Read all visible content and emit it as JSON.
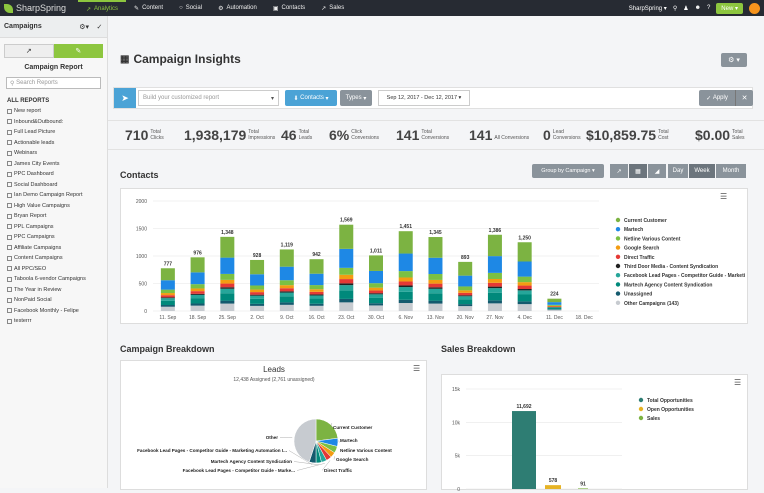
{
  "topnav": {
    "logo": "SharpSpring",
    "items": [
      {
        "label": "Analytics",
        "icon": "chart-icon",
        "active": true
      },
      {
        "label": "Content",
        "icon": "pencil-icon"
      },
      {
        "label": "Social",
        "icon": "chat-icon"
      },
      {
        "label": "Automation",
        "icon": "automation-icon"
      },
      {
        "label": "Contacts",
        "icon": "contacts-icon"
      },
      {
        "label": "Sales",
        "icon": "trend-icon"
      }
    ],
    "account": "SharpSpring",
    "new_label": "New"
  },
  "sidebar": {
    "title": "Campaigns",
    "report_label": "Campaign Report",
    "search_placeholder": "Search Reports",
    "all_reports": "ALL REPORTS",
    "items": [
      "New report",
      "Inbound&Outbound:",
      "Full Lead Picture",
      "Actionable leads",
      "Webinars",
      "James City Events",
      "PPC Dashboard",
      "Social Dashboard",
      "Ian Demo Campaign Report",
      "High Value Campaigns",
      "Bryan Report",
      "PPL Campaigns",
      "PPC Campaigns",
      "Affiliate Campaigns",
      "Content Campaigns",
      "All PPC/SEO",
      "Taboola 6-vendor Campaigns",
      "The Year in Review",
      "NonPaid Social",
      "Facebook Monthly - Felipe",
      "testerrr"
    ]
  },
  "page": {
    "title": "Campaign Insights"
  },
  "toolbar": {
    "input_placeholder": "Build your customized report",
    "contacts_label": "Contacts",
    "types_label": "Types",
    "date_range": "Sep 12, 2017 - Dec 12, 2017",
    "apply_label": "Apply"
  },
  "stats": [
    {
      "value": "710",
      "label1": "Total",
      "label2": "Clicks"
    },
    {
      "value": "1,938,179",
      "label1": "Total",
      "label2": "Impressions"
    },
    {
      "value": "46",
      "label1": "Total",
      "label2": "Leads"
    },
    {
      "value": "6%",
      "label1": "Click",
      "label2": "Conversions"
    },
    {
      "value": "141",
      "label1": "Total",
      "label2": "Conversions"
    },
    {
      "value": "141",
      "label1": "",
      "label2": "All Conversions"
    },
    {
      "value": "0",
      "label1": "Lead",
      "label2": "Conversions"
    },
    {
      "value": "$10,859.75",
      "label1": "Total",
      "label2": "Cost"
    },
    {
      "value": "$0.00",
      "label1": "Total",
      "label2": "Sales"
    }
  ],
  "contacts_section": {
    "title": "Contacts",
    "group_by": "Group by Campaign",
    "periods": [
      "Day",
      "Week",
      "Month"
    ],
    "active_period": "Week"
  },
  "breakdown": {
    "campaign_title": "Campaign Breakdown",
    "sales_title": "Sales Breakdown",
    "leads_title": "Leads",
    "leads_subtitle": "12,438 Assigned (2,761 unassigned)"
  },
  "colors": {
    "green": "#8dc63f",
    "blue": "#4ba3d6",
    "gray_btn": "#8a939b",
    "nav": "#272b33"
  },
  "chart_data": [
    {
      "type": "bar",
      "stacked": true,
      "categories": [
        "11. Sep",
        "18. Sep",
        "25. Sep",
        "2. Oct",
        "9. Oct",
        "16. Oct",
        "23. Oct",
        "30. Oct",
        "6. Nov",
        "13. Nov",
        "20. Nov",
        "27. Nov",
        "4. Dec",
        "11. Dec",
        "18. Dec"
      ],
      "totals": [
        777,
        976,
        1348,
        928,
        1119,
        942,
        1569,
        1011,
        1451,
        1345,
        893,
        1386,
        1250,
        224,
        null
      ],
      "total_labels": [
        "777",
        "976",
        "1,348",
        "928",
        "1,119",
        "942",
        "1,569",
        "1,011",
        "1,451",
        "1,345",
        "893",
        "1,386",
        "1,250",
        "224",
        ""
      ],
      "ylim": [
        0,
        2000
      ],
      "yticks": [
        "0",
        "500",
        "1000",
        "1500",
        "2000"
      ],
      "legend_position": "right",
      "series": [
        {
          "name": "Current Customer",
          "color": "#7cb342"
        },
        {
          "name": "Martech",
          "color": "#1e88e5"
        },
        {
          "name": "Netline Various Content",
          "color": "#7bc043"
        },
        {
          "name": "Google Search",
          "color": "#f39c12"
        },
        {
          "name": "Direct Traffic",
          "color": "#e53935"
        },
        {
          "name": "Third Door Media - Content Syndication",
          "color": "#212121"
        },
        {
          "name": "Facebook Lead Pages - Competitor Guide - Marketi",
          "color": "#26a69a"
        },
        {
          "name": "Martech Agency Content Syndication",
          "color": "#00897b"
        },
        {
          "name": "Unassigned",
          "color": "#145a6e"
        },
        {
          "name": "Other Campaigns (143)",
          "color": "#c7cbd0"
        }
      ]
    },
    {
      "type": "pie",
      "title": "Leads",
      "subtitle": "12,438 Assigned (2,761 unassigned)",
      "slices": [
        {
          "name": "Current Customer",
          "value": 23,
          "color": "#7cb342"
        },
        {
          "name": "Martech",
          "value": 6,
          "color": "#1e88e5"
        },
        {
          "name": "Netline Various Content",
          "value": 5,
          "color": "#7bc043"
        },
        {
          "name": "Google Search",
          "value": 4,
          "color": "#f39c12"
        },
        {
          "name": "Direct Traffic",
          "value": 4,
          "color": "#e53935"
        },
        {
          "name": "Facebook Lead Pages - Competitor Guide - Marke...",
          "value": 4,
          "color": "#26a69a"
        },
        {
          "name": "Martech Agency Content Syndication",
          "value": 4,
          "color": "#00897b"
        },
        {
          "name": "Facebook Lead Pages - Competitor Guide - Marketing Automation I...",
          "value": 5,
          "color": "#145a6e"
        },
        {
          "name": "Other",
          "value": 45,
          "color": "#c7cbd0"
        }
      ]
    },
    {
      "type": "bar",
      "categories": [
        "Total Opportunities",
        "Open Opportunities",
        "Sales"
      ],
      "values": [
        11692,
        578,
        91
      ],
      "value_labels": [
        "11,692",
        "578",
        "91"
      ],
      "ylim": [
        0,
        15000
      ],
      "yticks": [
        "0",
        "5k",
        "10k",
        "15k"
      ],
      "legend_position": "right",
      "series": [
        {
          "name": "Total Opportunities",
          "color": "#2e7d73"
        },
        {
          "name": "Open Opportunities",
          "color": "#e6b325"
        },
        {
          "name": "Sales",
          "color": "#7cb342"
        }
      ]
    }
  ]
}
